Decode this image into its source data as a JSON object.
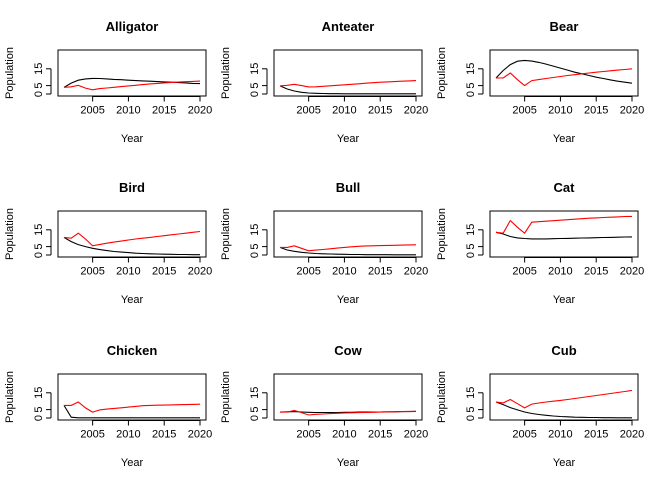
{
  "figure": {
    "xlabel": "Year",
    "ylabel": "Population"
  },
  "chart_data": [
    {
      "type": "line",
      "title": "Alligator",
      "xlabel": "Year",
      "ylabel": "Population",
      "xlim": [
        2001,
        2020
      ],
      "ylim": [
        0,
        25
      ],
      "xticks": [
        "2005",
        "2010",
        "2015",
        "2020"
      ],
      "yticks": [
        "0",
        "5",
        "15"
      ],
      "x": [
        2001,
        2002,
        2003,
        2004,
        2005,
        2006,
        2007,
        2008,
        2009,
        2010,
        2011,
        2012,
        2013,
        2014,
        2015,
        2016,
        2017,
        2018,
        2019,
        2020
      ],
      "series": [
        {
          "color": "#000000",
          "values": [
            4,
            6.5,
            8.2,
            9,
            9.3,
            9.2,
            9,
            8.7,
            8.5,
            8.2,
            8,
            7.8,
            7.6,
            7.4,
            7.2,
            7,
            6.8,
            6.6,
            6.3,
            6.2
          ]
        },
        {
          "color": "#ff0000",
          "values": [
            4,
            4.3,
            5.2,
            3.5,
            2.5,
            3.2,
            3.6,
            4,
            4.4,
            4.8,
            5.2,
            5.6,
            6,
            6.3,
            6.6,
            6.9,
            7.1,
            7.3,
            7.5,
            7.7
          ]
        }
      ]
    },
    {
      "type": "line",
      "title": "Anteater",
      "xlabel": "Year",
      "ylabel": "Population",
      "xlim": [
        2001,
        2020
      ],
      "ylim": [
        0,
        25
      ],
      "xticks": [
        "2005",
        "2010",
        "2015",
        "2020"
      ],
      "yticks": [
        "0",
        "5",
        "15"
      ],
      "x": [
        2001,
        2002,
        2003,
        2004,
        2005,
        2006,
        2007,
        2008,
        2009,
        2010,
        2011,
        2012,
        2013,
        2014,
        2015,
        2016,
        2017,
        2018,
        2019,
        2020
      ],
      "series": [
        {
          "color": "#000000",
          "values": [
            4.8,
            3,
            1.8,
            1,
            0.6,
            0.4,
            0.3,
            0.2,
            0.2,
            0.1,
            0.1,
            0.1,
            0.1,
            0.1,
            0.1,
            0.1,
            0.1,
            0.1,
            0.1,
            0.1
          ]
        },
        {
          "color": "#ff0000",
          "values": [
            4.8,
            5.2,
            5.8,
            5,
            4.2,
            4.3,
            4.6,
            4.9,
            5.2,
            5.5,
            5.8,
            6.1,
            6.4,
            6.7,
            7,
            7.2,
            7.4,
            7.6,
            7.8,
            8
          ]
        }
      ]
    },
    {
      "type": "line",
      "title": "Bear",
      "xlabel": "Year",
      "ylabel": "Population",
      "xlim": [
        2001,
        2020
      ],
      "ylim": [
        0,
        25
      ],
      "xticks": [
        "2005",
        "2010",
        "2015",
        "2020"
      ],
      "yticks": [
        "0",
        "5",
        "15"
      ],
      "x": [
        2001,
        2002,
        2003,
        2004,
        2005,
        2006,
        2007,
        2008,
        2009,
        2010,
        2011,
        2012,
        2013,
        2014,
        2015,
        2016,
        2017,
        2018,
        2019,
        2020
      ],
      "series": [
        {
          "color": "#000000",
          "values": [
            9.5,
            14,
            17.5,
            19.5,
            20,
            19.6,
            18.8,
            17.8,
            16.6,
            15.4,
            14.2,
            13,
            12,
            11,
            10,
            9.2,
            8.4,
            7.6,
            7,
            6.4
          ]
        },
        {
          "color": "#ff0000",
          "values": [
            9.5,
            9.5,
            12.5,
            8.5,
            5,
            8,
            8.6,
            9.2,
            9.8,
            10.4,
            11,
            11.5,
            12,
            12.5,
            13,
            13.4,
            13.8,
            14.2,
            14.6,
            15
          ]
        }
      ]
    },
    {
      "type": "line",
      "title": "Bird",
      "xlabel": "Year",
      "ylabel": "Population",
      "xlim": [
        2001,
        2020
      ],
      "ylim": [
        0,
        25
      ],
      "xticks": [
        "2005",
        "2010",
        "2015",
        "2020"
      ],
      "yticks": [
        "0",
        "5",
        "15"
      ],
      "x": [
        2001,
        2002,
        2003,
        2004,
        2005,
        2006,
        2007,
        2008,
        2009,
        2010,
        2011,
        2012,
        2013,
        2014,
        2015,
        2016,
        2017,
        2018,
        2019,
        2020
      ],
      "series": [
        {
          "color": "#000000",
          "values": [
            10.5,
            8,
            6.2,
            5,
            4,
            3.2,
            2.6,
            2.1,
            1.7,
            1.4,
            1.1,
            0.9,
            0.7,
            0.6,
            0.5,
            0.4,
            0.3,
            0.3,
            0.2,
            0.2
          ]
        },
        {
          "color": "#ff0000",
          "values": [
            10.5,
            10,
            13,
            9.5,
            5.5,
            6.3,
            7,
            7.7,
            8.3,
            8.9,
            9.5,
            10,
            10.5,
            11,
            11.5,
            12,
            12.5,
            13,
            13.5,
            14
          ]
        }
      ]
    },
    {
      "type": "line",
      "title": "Bull",
      "xlabel": "Year",
      "ylabel": "Population",
      "xlim": [
        2001,
        2020
      ],
      "ylim": [
        0,
        25
      ],
      "xticks": [
        "2005",
        "2010",
        "2015",
        "2020"
      ],
      "yticks": [
        "0",
        "5",
        "15"
      ],
      "x": [
        2001,
        2002,
        2003,
        2004,
        2005,
        2006,
        2007,
        2008,
        2009,
        2010,
        2011,
        2012,
        2013,
        2014,
        2015,
        2016,
        2017,
        2018,
        2019,
        2020
      ],
      "series": [
        {
          "color": "#000000",
          "values": [
            4.5,
            3,
            2.2,
            1.6,
            1.2,
            0.9,
            0.7,
            0.6,
            0.5,
            0.4,
            0.3,
            0.3,
            0.2,
            0.2,
            0.2,
            0.2,
            0.1,
            0.1,
            0.1,
            0.1
          ]
        },
        {
          "color": "#ff0000",
          "values": [
            4.5,
            4.5,
            5.5,
            4,
            2.5,
            2.9,
            3.3,
            3.7,
            4.1,
            4.5,
            4.9,
            5.2,
            5.4,
            5.5,
            5.6,
            5.7,
            5.8,
            5.9,
            6,
            6.1
          ]
        }
      ]
    },
    {
      "type": "line",
      "title": "Cat",
      "xlabel": "Year",
      "ylabel": "Population",
      "xlim": [
        2001,
        2020
      ],
      "ylim": [
        0,
        25
      ],
      "xticks": [
        "2005",
        "2010",
        "2015",
        "2020"
      ],
      "yticks": [
        "0",
        "5",
        "15"
      ],
      "x": [
        2001,
        2002,
        2003,
        2004,
        2005,
        2006,
        2007,
        2008,
        2009,
        2010,
        2011,
        2012,
        2013,
        2014,
        2015,
        2016,
        2017,
        2018,
        2019,
        2020
      ],
      "series": [
        {
          "color": "#000000",
          "values": [
            13.5,
            12.5,
            11,
            10.2,
            9.8,
            9.6,
            9.6,
            9.6,
            9.7,
            9.8,
            9.9,
            10,
            10.1,
            10.2,
            10.3,
            10.4,
            10.5,
            10.6,
            10.7,
            10.8
          ]
        },
        {
          "color": "#ff0000",
          "values": [
            13.5,
            13,
            20.5,
            16.5,
            13,
            19.5,
            19.8,
            20.1,
            20.4,
            20.7,
            21,
            21.3,
            21.6,
            21.9,
            22.1,
            22.3,
            22.5,
            22.7,
            22.9,
            23
          ]
        }
      ]
    },
    {
      "type": "line",
      "title": "Chicken",
      "xlabel": "Year",
      "ylabel": "Population",
      "xlim": [
        2001,
        2020
      ],
      "ylim": [
        0,
        25
      ],
      "xticks": [
        "2005",
        "2010",
        "2015",
        "2020"
      ],
      "yticks": [
        "0",
        "5",
        "15"
      ],
      "x": [
        2001,
        2002,
        2003,
        2004,
        2005,
        2006,
        2007,
        2008,
        2009,
        2010,
        2011,
        2012,
        2013,
        2014,
        2015,
        2016,
        2017,
        2018,
        2019,
        2020
      ],
      "series": [
        {
          "color": "#000000",
          "values": [
            7.5,
            0.5,
            0.1,
            0.1,
            0.1,
            0.1,
            0.1,
            0.1,
            0.1,
            0.1,
            0.1,
            0.1,
            0.1,
            0.1,
            0.1,
            0.1,
            0.1,
            0.1,
            0.1,
            0.1
          ]
        },
        {
          "color": "#ff0000",
          "values": [
            7.5,
            7.5,
            9.5,
            6,
            3.5,
            4.8,
            5.3,
            5.7,
            6.1,
            6.5,
            6.9,
            7.3,
            7.5,
            7.6,
            7.7,
            7.8,
            7.9,
            8,
            8.1,
            8.2
          ]
        }
      ]
    },
    {
      "type": "line",
      "title": "Cow",
      "xlabel": "Year",
      "ylabel": "Population",
      "xlim": [
        2001,
        2020
      ],
      "ylim": [
        0,
        25
      ],
      "xticks": [
        "2005",
        "2010",
        "2015",
        "2020"
      ],
      "yticks": [
        "0",
        "5",
        "15"
      ],
      "x": [
        2001,
        2002,
        2003,
        2004,
        2005,
        2006,
        2007,
        2008,
        2009,
        2010,
        2011,
        2012,
        2013,
        2014,
        2015,
        2016,
        2017,
        2018,
        2019,
        2020
      ],
      "series": [
        {
          "color": "#000000",
          "values": [
            3.5,
            3.7,
            3.8,
            3.6,
            3.4,
            3.3,
            3.3,
            3.3,
            3.3,
            3.4,
            3.4,
            3.5,
            3.5,
            3.6,
            3.6,
            3.7,
            3.7,
            3.8,
            3.8,
            3.9
          ]
        },
        {
          "color": "#ff0000",
          "values": [
            3.5,
            3.5,
            4.5,
            3.2,
            1.8,
            2.2,
            2.4,
            2.6,
            2.8,
            3,
            3.1,
            3.2,
            3.3,
            3.4,
            3.5,
            3.6,
            3.7,
            3.8,
            3.9,
            4
          ]
        }
      ]
    },
    {
      "type": "line",
      "title": "Cub",
      "xlabel": "Year",
      "ylabel": "Population",
      "xlim": [
        2001,
        2020
      ],
      "ylim": [
        0,
        25
      ],
      "xticks": [
        "2005",
        "2010",
        "2015",
        "2020"
      ],
      "yticks": [
        "0",
        "5",
        "15"
      ],
      "x": [
        2001,
        2002,
        2003,
        2004,
        2005,
        2006,
        2007,
        2008,
        2009,
        2010,
        2011,
        2012,
        2013,
        2014,
        2015,
        2016,
        2017,
        2018,
        2019,
        2020
      ],
      "series": [
        {
          "color": "#000000",
          "values": [
            9.5,
            8,
            6.2,
            4.8,
            3.6,
            2.7,
            2.1,
            1.6,
            1.2,
            0.9,
            0.7,
            0.5,
            0.4,
            0.3,
            0.3,
            0.2,
            0.2,
            0.1,
            0.1,
            0.1
          ]
        },
        {
          "color": "#ff0000",
          "values": [
            9.5,
            9,
            11,
            8.5,
            6,
            8.3,
            8.9,
            9.5,
            10,
            10.5,
            11,
            11.6,
            12.2,
            12.8,
            13.4,
            14,
            14.6,
            15.2,
            15.8,
            16.4
          ]
        }
      ]
    }
  ]
}
